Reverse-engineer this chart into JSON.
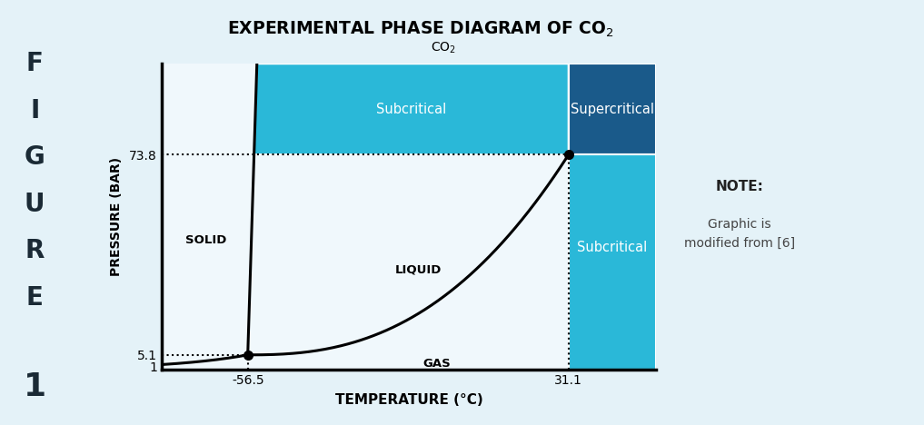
{
  "title": "EXPERIMENTAL PHASE DIAGRAM OF CO$_2$",
  "xlabel": "TEMPERATURE (°C)",
  "ylabel": "PRESSURE (BAR)",
  "bg_color": "#e4f2f8",
  "left_bar_color": "#c8e4f0",
  "plot_bg": "#f0f8fc",
  "x_min": -80,
  "x_max": 55,
  "y_min": 0,
  "y_max": 105,
  "triple_point": [
    -56.5,
    5.1
  ],
  "critical_point": [
    31.1,
    73.8
  ],
  "color_subcritical_top": "#2ab8d8",
  "color_supercritical": "#1a5a8a",
  "color_subcritical_bottom": "#2ab8d8",
  "label_subcritical_top": "Subcritical",
  "label_supercritical": "Supercritical",
  "label_subcritical_bottom": "Subcritical",
  "label_solid": "SOLID",
  "label_liquid": "LIQUID",
  "label_gas": "GAS",
  "note_title": "NOTE:",
  "note_body": "Graphic is\nmodified from [6]",
  "figure_label": [
    "F",
    "I",
    "G",
    "U",
    "R",
    "E"
  ],
  "figure_number": "1"
}
